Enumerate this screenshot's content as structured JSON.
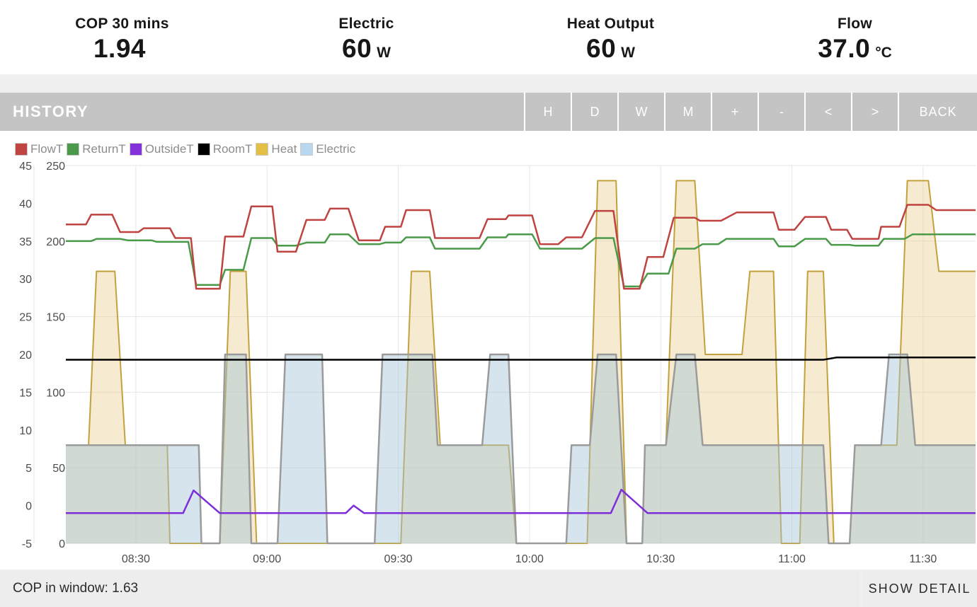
{
  "stats": [
    {
      "label": "COP 30 mins",
      "value": "1.94",
      "unit": ""
    },
    {
      "label": "Electric",
      "value": "60",
      "unit": "W"
    },
    {
      "label": "Heat Output",
      "value": "60",
      "unit": "W"
    },
    {
      "label": "Flow",
      "value": "37.0",
      "unit": "°C"
    }
  ],
  "toolbar": {
    "title": "HISTORY",
    "buttons": [
      "H",
      "D",
      "W",
      "M",
      "+",
      "-",
      "<",
      ">",
      "BACK"
    ]
  },
  "footer": {
    "left": "COP in window: 1.63",
    "right": "SHOW DETAIL"
  },
  "chart_data": {
    "type": "line",
    "title": "",
    "x_axis": {
      "range_hours": [
        8.2333,
        11.7
      ],
      "tick_hours": [
        8.5,
        9.0,
        9.5,
        10.0,
        10.5,
        11.0,
        11.5
      ],
      "tick_labels": [
        "08:30",
        "09:00",
        "09:30",
        "10:00",
        "10:30",
        "11:00",
        "11:30"
      ]
    },
    "y_axis_temp": {
      "label": "°C",
      "range": [
        -5,
        45
      ],
      "ticks": [
        45,
        40,
        35,
        30,
        25,
        20,
        15,
        10,
        5,
        0,
        -5
      ]
    },
    "y_axis_power": {
      "label": "W",
      "range": [
        0,
        250
      ],
      "ticks": [
        250,
        200,
        150,
        100,
        50,
        0
      ]
    },
    "grid": {
      "h_lines_power": [
        250,
        200,
        150,
        100,
        50,
        0
      ],
      "v_lines_hours": [
        8.5,
        9.0,
        9.5,
        10.0,
        10.5,
        11.0,
        11.5
      ]
    },
    "legend": [
      {
        "name": "FlowT",
        "color": "#c0443f"
      },
      {
        "name": "ReturnT",
        "color": "#4a9a4a"
      },
      {
        "name": "OutsideT",
        "color": "#8531d9"
      },
      {
        "name": "RoomT",
        "color": "#000000"
      },
      {
        "name": "Heat",
        "color": "#e2bf45"
      },
      {
        "name": "Electric",
        "color": "#b9d7ee"
      }
    ],
    "series": [
      {
        "name": "Heat",
        "axis": "power",
        "fill": true,
        "stroke": "#c3a13d",
        "fill_color": "rgba(235,210,150,0.45)",
        "width": 2,
        "points": [
          [
            8.23,
            65
          ],
          [
            8.32,
            65
          ],
          [
            8.35,
            180
          ],
          [
            8.42,
            180
          ],
          [
            8.46,
            65
          ],
          [
            8.62,
            65
          ],
          [
            8.63,
            0
          ],
          [
            8.82,
            0
          ],
          [
            8.86,
            180
          ],
          [
            8.92,
            180
          ],
          [
            8.96,
            0
          ],
          [
            9.51,
            0
          ],
          [
            9.55,
            180
          ],
          [
            9.62,
            180
          ],
          [
            9.66,
            65
          ],
          [
            9.92,
            65
          ],
          [
            9.95,
            0
          ],
          [
            10.22,
            0
          ],
          [
            10.26,
            240
          ],
          [
            10.33,
            240
          ],
          [
            10.37,
            0
          ],
          [
            10.43,
            0
          ],
          [
            10.44,
            65
          ],
          [
            10.52,
            65
          ],
          [
            10.56,
            240
          ],
          [
            10.63,
            240
          ],
          [
            10.67,
            125
          ],
          [
            10.81,
            125
          ],
          [
            10.84,
            180
          ],
          [
            10.93,
            180
          ],
          [
            10.96,
            0
          ],
          [
            11.03,
            0
          ],
          [
            11.06,
            180
          ],
          [
            11.12,
            180
          ],
          [
            11.16,
            0
          ],
          [
            11.22,
            0
          ],
          [
            11.24,
            65
          ],
          [
            11.4,
            65
          ],
          [
            11.44,
            240
          ],
          [
            11.52,
            240
          ],
          [
            11.56,
            180
          ],
          [
            11.7,
            180
          ]
        ]
      },
      {
        "name": "Electric",
        "axis": "power",
        "fill": true,
        "stroke": "#9b9b9b",
        "fill_color": "rgba(165,195,215,0.45)",
        "width": 2.5,
        "points": [
          [
            8.23,
            65
          ],
          [
            8.74,
            65
          ],
          [
            8.75,
            0
          ],
          [
            8.82,
            0
          ],
          [
            8.84,
            125
          ],
          [
            8.92,
            125
          ],
          [
            8.94,
            0
          ],
          [
            9.04,
            0
          ],
          [
            9.07,
            125
          ],
          [
            9.21,
            125
          ],
          [
            9.23,
            0
          ],
          [
            9.41,
            0
          ],
          [
            9.44,
            125
          ],
          [
            9.63,
            125
          ],
          [
            9.65,
            65
          ],
          [
            9.82,
            65
          ],
          [
            9.85,
            125
          ],
          [
            9.92,
            125
          ],
          [
            9.95,
            0
          ],
          [
            10.14,
            0
          ],
          [
            10.16,
            65
          ],
          [
            10.23,
            65
          ],
          [
            10.26,
            125
          ],
          [
            10.33,
            125
          ],
          [
            10.37,
            0
          ],
          [
            10.43,
            0
          ],
          [
            10.44,
            65
          ],
          [
            10.52,
            65
          ],
          [
            10.56,
            125
          ],
          [
            10.63,
            125
          ],
          [
            10.66,
            65
          ],
          [
            11.12,
            65
          ],
          [
            11.14,
            0
          ],
          [
            11.22,
            0
          ],
          [
            11.24,
            65
          ],
          [
            11.34,
            65
          ],
          [
            11.37,
            125
          ],
          [
            11.44,
            125
          ],
          [
            11.47,
            65
          ],
          [
            11.7,
            65
          ]
        ]
      },
      {
        "name": "OutsideT",
        "axis": "temp",
        "fill": false,
        "stroke": "#7d2ed8",
        "width": 2.5,
        "points": [
          [
            8.23,
            -1.0
          ],
          [
            8.68,
            -1.0
          ],
          [
            8.72,
            2.0
          ],
          [
            8.82,
            -1.0
          ],
          [
            9.3,
            -1.0
          ],
          [
            9.33,
            0.0
          ],
          [
            9.37,
            -1.0
          ],
          [
            10.31,
            -1.0
          ],
          [
            10.35,
            2.1
          ],
          [
            10.45,
            -1.0
          ],
          [
            11.7,
            -1.0
          ]
        ]
      },
      {
        "name": "RoomT",
        "axis": "temp",
        "fill": false,
        "stroke": "#000000",
        "width": 2.5,
        "points": [
          [
            8.23,
            19.3
          ],
          [
            11.12,
            19.3
          ],
          [
            11.17,
            19.6
          ],
          [
            11.7,
            19.6
          ]
        ]
      },
      {
        "name": "ReturnT",
        "axis": "temp",
        "fill": false,
        "stroke": "#4a9a4a",
        "width": 2.5,
        "points": [
          [
            8.23,
            35.0
          ],
          [
            8.33,
            35.0
          ],
          [
            8.35,
            35.3
          ],
          [
            8.44,
            35.3
          ],
          [
            8.47,
            35.1
          ],
          [
            8.56,
            35.1
          ],
          [
            8.58,
            34.9
          ],
          [
            8.7,
            34.9
          ],
          [
            8.73,
            29.2
          ],
          [
            8.82,
            29.2
          ],
          [
            8.84,
            31.2
          ],
          [
            8.91,
            31.2
          ],
          [
            8.94,
            35.4
          ],
          [
            9.02,
            35.4
          ],
          [
            9.04,
            34.4
          ],
          [
            9.11,
            34.4
          ],
          [
            9.15,
            34.8
          ],
          [
            9.22,
            34.8
          ],
          [
            9.24,
            35.9
          ],
          [
            9.31,
            35.9
          ],
          [
            9.35,
            34.6
          ],
          [
            9.43,
            34.6
          ],
          [
            9.45,
            34.8
          ],
          [
            9.51,
            34.8
          ],
          [
            9.53,
            35.5
          ],
          [
            9.62,
            35.5
          ],
          [
            9.64,
            34.0
          ],
          [
            9.81,
            34.0
          ],
          [
            9.84,
            35.5
          ],
          [
            9.91,
            35.5
          ],
          [
            9.92,
            35.9
          ],
          [
            10.01,
            35.9
          ],
          [
            10.04,
            34.0
          ],
          [
            10.2,
            34.0
          ],
          [
            10.25,
            35.4
          ],
          [
            10.32,
            35.4
          ],
          [
            10.36,
            29.0
          ],
          [
            10.42,
            29.0
          ],
          [
            10.45,
            30.7
          ],
          [
            10.53,
            30.7
          ],
          [
            10.56,
            34.0
          ],
          [
            10.63,
            34.0
          ],
          [
            10.66,
            34.6
          ],
          [
            10.72,
            34.6
          ],
          [
            10.75,
            35.3
          ],
          [
            10.93,
            35.3
          ],
          [
            10.95,
            34.3
          ],
          [
            11.01,
            34.3
          ],
          [
            11.05,
            35.3
          ],
          [
            11.13,
            35.3
          ],
          [
            11.15,
            34.5
          ],
          [
            11.22,
            34.5
          ],
          [
            11.24,
            34.4
          ],
          [
            11.33,
            34.4
          ],
          [
            11.35,
            35.3
          ],
          [
            11.43,
            35.3
          ],
          [
            11.46,
            35.9
          ],
          [
            11.7,
            35.9
          ]
        ]
      },
      {
        "name": "FlowT",
        "axis": "temp",
        "fill": false,
        "stroke": "#bf4340",
        "width": 2.5,
        "points": [
          [
            8.23,
            37.2
          ],
          [
            8.31,
            37.2
          ],
          [
            8.33,
            38.5
          ],
          [
            8.41,
            38.5
          ],
          [
            8.44,
            36.2
          ],
          [
            8.51,
            36.2
          ],
          [
            8.53,
            36.7
          ],
          [
            8.63,
            36.7
          ],
          [
            8.65,
            35.4
          ],
          [
            8.71,
            35.4
          ],
          [
            8.73,
            28.7
          ],
          [
            8.82,
            28.7
          ],
          [
            8.84,
            35.6
          ],
          [
            8.91,
            35.6
          ],
          [
            8.94,
            39.6
          ],
          [
            9.02,
            39.6
          ],
          [
            9.04,
            33.6
          ],
          [
            9.11,
            33.6
          ],
          [
            9.15,
            37.8
          ],
          [
            9.22,
            37.8
          ],
          [
            9.24,
            39.3
          ],
          [
            9.31,
            39.3
          ],
          [
            9.35,
            35.1
          ],
          [
            9.43,
            35.1
          ],
          [
            9.45,
            36.9
          ],
          [
            9.51,
            36.9
          ],
          [
            9.53,
            39.1
          ],
          [
            9.62,
            39.1
          ],
          [
            9.64,
            35.4
          ],
          [
            9.81,
            35.4
          ],
          [
            9.84,
            37.9
          ],
          [
            9.91,
            37.9
          ],
          [
            9.92,
            38.4
          ],
          [
            10.01,
            38.4
          ],
          [
            10.04,
            34.6
          ],
          [
            10.11,
            34.6
          ],
          [
            10.14,
            35.5
          ],
          [
            10.2,
            35.5
          ],
          [
            10.25,
            39.0
          ],
          [
            10.32,
            39.0
          ],
          [
            10.36,
            28.7
          ],
          [
            10.42,
            28.7
          ],
          [
            10.45,
            32.9
          ],
          [
            10.51,
            32.9
          ],
          [
            10.55,
            38.1
          ],
          [
            10.63,
            38.1
          ],
          [
            10.65,
            37.7
          ],
          [
            10.73,
            37.7
          ],
          [
            10.79,
            38.8
          ],
          [
            10.93,
            38.8
          ],
          [
            10.95,
            36.5
          ],
          [
            11.01,
            36.5
          ],
          [
            11.05,
            38.2
          ],
          [
            11.13,
            38.2
          ],
          [
            11.15,
            36.5
          ],
          [
            11.21,
            36.5
          ],
          [
            11.23,
            35.3
          ],
          [
            11.33,
            35.3
          ],
          [
            11.34,
            36.9
          ],
          [
            11.41,
            36.9
          ],
          [
            11.44,
            39.8
          ],
          [
            11.52,
            39.8
          ],
          [
            11.55,
            39.1
          ],
          [
            11.7,
            39.1
          ]
        ]
      }
    ]
  }
}
